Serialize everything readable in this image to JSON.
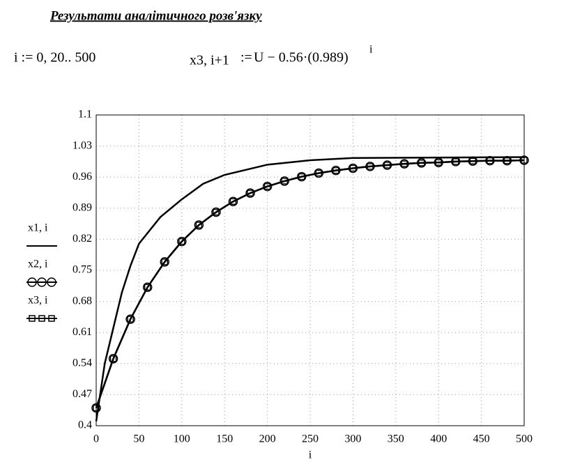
{
  "header": {
    "title": "Результати аналітичного розв'язку",
    "range_def": "i := 0, 20.. 500",
    "formula_lhs": "x3, i+1",
    "formula_op": ":=",
    "formula_rhs": "U − 0.56·(0.989)",
    "formula_exp": "i"
  },
  "chart_data": {
    "type": "line",
    "xlabel": "i",
    "xlim": [
      0,
      500
    ],
    "xticks": [
      0,
      50,
      100,
      150,
      200,
      250,
      300,
      350,
      400,
      450,
      500
    ],
    "ylim": [
      0.4,
      1.1
    ],
    "yticks": [
      0.4,
      0.47,
      0.54,
      0.61,
      0.68,
      0.75,
      0.82,
      0.89,
      0.96,
      1.03,
      1.1
    ],
    "grid": true,
    "series": [
      {
        "name": "x1, i",
        "color": "#000000",
        "marker": "none",
        "x": [
          0,
          10,
          20,
          30,
          40,
          50,
          75,
          100,
          125,
          150,
          200,
          250,
          300,
          400,
          500
        ],
        "values": [
          0.41,
          0.54,
          0.62,
          0.7,
          0.76,
          0.81,
          0.87,
          0.91,
          0.945,
          0.965,
          0.988,
          0.998,
          1.003,
          1.004,
          1.005
        ]
      },
      {
        "name": "x2, i",
        "color": "#000000",
        "marker": "circle",
        "x": [
          0,
          20,
          40,
          60,
          80,
          100,
          120,
          140,
          160,
          180,
          200,
          220,
          240,
          260,
          280,
          300,
          320,
          340,
          360,
          380,
          400,
          420,
          440,
          460,
          480,
          500
        ],
        "values": [
          0.44,
          0.551,
          0.64,
          0.712,
          0.769,
          0.815,
          0.852,
          0.881,
          0.905,
          0.924,
          0.939,
          0.951,
          0.961,
          0.969,
          0.975,
          0.98,
          0.984,
          0.987,
          0.99,
          0.992,
          0.993,
          0.995,
          0.996,
          0.997,
          0.997,
          0.998
        ]
      },
      {
        "name": "x3, i",
        "color": "#000000",
        "marker": "square",
        "x": [
          0,
          20,
          40,
          60,
          80,
          100,
          120,
          140,
          160,
          180,
          200,
          220,
          240,
          260,
          280,
          300,
          320,
          340,
          360,
          380,
          400,
          420,
          440,
          460,
          480,
          500
        ],
        "values": [
          0.44,
          0.551,
          0.64,
          0.712,
          0.769,
          0.815,
          0.852,
          0.881,
          0.905,
          0.924,
          0.939,
          0.951,
          0.961,
          0.969,
          0.975,
          0.98,
          0.984,
          0.987,
          0.99,
          0.992,
          0.993,
          0.995,
          0.996,
          0.997,
          0.997,
          0.998
        ]
      }
    ]
  }
}
